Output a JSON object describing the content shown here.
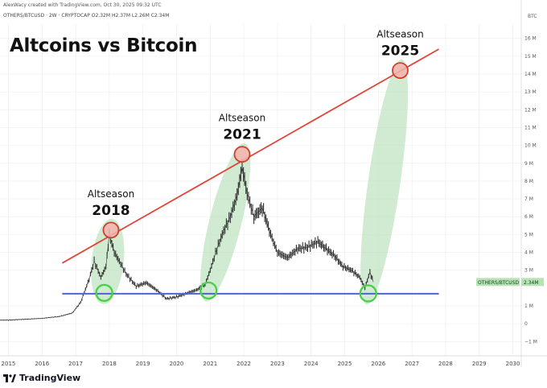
{
  "meta": {
    "creator_line": "AlexWacy created with TradingView.com, Oct 30, 2025 09:32 UTC",
    "symbol_line": "OTHERS/BTCUSD · 2W · CRYPTOCAP  O2.32M  H2.37M  L2.26M  C2.34M",
    "brand": "TradingView"
  },
  "colors": {
    "trendline": "#e0463a",
    "support": "#4f63d9",
    "cycle_fill": "#b7e1b9",
    "circle_red_fill": "#f4b3ae",
    "circle_red_stroke": "#c9412f",
    "circle_green_stroke": "#4cd04c",
    "candle": "#333333",
    "grid": "#ededed",
    "price_tag_bg": "#b6e3b4"
  },
  "chart_data": {
    "type": "line",
    "title": "Altcoins vs Bitcoin",
    "y_unit_label": "BTC",
    "ylim": [
      -1.8,
      16.8
    ],
    "xlim": [
      2014.75,
      2030.25
    ],
    "y_ticks": [
      {
        "v": 16,
        "label": "16 M"
      },
      {
        "v": 15,
        "label": "15 M"
      },
      {
        "v": 14,
        "label": "14 M"
      },
      {
        "v": 13,
        "label": "13 M"
      },
      {
        "v": 12,
        "label": "12 M"
      },
      {
        "v": 11,
        "label": "11 M"
      },
      {
        "v": 10,
        "label": "10 M"
      },
      {
        "v": 9,
        "label": "9 M"
      },
      {
        "v": 8,
        "label": "8 M"
      },
      {
        "v": 7,
        "label": "7 M"
      },
      {
        "v": 6,
        "label": "6 M"
      },
      {
        "v": 5,
        "label": "5 M"
      },
      {
        "v": 4,
        "label": "4 M"
      },
      {
        "v": 3,
        "label": "3 M"
      },
      {
        "v": 1,
        "label": "1 M"
      },
      {
        "v": 0,
        "label": "0"
      },
      {
        "v": -1,
        "label": "−1 M"
      }
    ],
    "x_ticks": [
      {
        "v": 2015,
        "label": "2015"
      },
      {
        "v": 2016,
        "label": "2016"
      },
      {
        "v": 2017,
        "label": "2017"
      },
      {
        "v": 2018,
        "label": "2018"
      },
      {
        "v": 2019,
        "label": "2019"
      },
      {
        "v": 2020,
        "label": "2020"
      },
      {
        "v": 2021,
        "label": "2021"
      },
      {
        "v": 2022,
        "label": "2022"
      },
      {
        "v": 2023,
        "label": "2023"
      },
      {
        "v": 2024,
        "label": "2024"
      },
      {
        "v": 2025,
        "label": "2025"
      },
      {
        "v": 2026,
        "label": "2026"
      },
      {
        "v": 2027,
        "label": "2027"
      },
      {
        "v": 2028,
        "label": "2028"
      },
      {
        "v": 2029,
        "label": "2029"
      },
      {
        "v": 2030,
        "label": "2030"
      }
    ],
    "price_tag": {
      "symbol": "OTHERS/BTCUSD",
      "value": 2.34,
      "label": "2.34M"
    },
    "series": [
      {
        "values": [
          [
            2014.75,
            0.2
          ],
          [
            2015.0,
            0.2
          ],
          [
            2015.5,
            0.25
          ],
          [
            2016.0,
            0.3
          ],
          [
            2016.5,
            0.4
          ],
          [
            2016.9,
            0.6
          ],
          [
            2017.15,
            1.2
          ],
          [
            2017.4,
            2.5
          ],
          [
            2017.55,
            3.5
          ],
          [
            2017.75,
            2.6
          ],
          [
            2017.9,
            3.2
          ],
          [
            2018.0,
            5.0
          ],
          [
            2018.15,
            4.0
          ],
          [
            2018.3,
            3.5
          ],
          [
            2018.5,
            2.8
          ],
          [
            2018.8,
            2.1
          ],
          [
            2019.1,
            2.3
          ],
          [
            2019.4,
            1.9
          ],
          [
            2019.7,
            1.4
          ],
          [
            2020.0,
            1.5
          ],
          [
            2020.3,
            1.7
          ],
          [
            2020.6,
            1.9
          ],
          [
            2020.85,
            2.2
          ],
          [
            2021.0,
            3.0
          ],
          [
            2021.2,
            4.2
          ],
          [
            2021.4,
            5.2
          ],
          [
            2021.6,
            6.0
          ],
          [
            2021.8,
            7.2
          ],
          [
            2021.95,
            8.8
          ],
          [
            2022.1,
            7.3
          ],
          [
            2022.3,
            6.0
          ],
          [
            2022.55,
            6.5
          ],
          [
            2022.8,
            5.0
          ],
          [
            2023.0,
            4.0
          ],
          [
            2023.3,
            3.7
          ],
          [
            2023.6,
            4.2
          ],
          [
            2023.9,
            4.3
          ],
          [
            2024.2,
            4.6
          ],
          [
            2024.45,
            4.2
          ],
          [
            2024.7,
            3.8
          ],
          [
            2024.95,
            3.2
          ],
          [
            2025.2,
            3.0
          ],
          [
            2025.45,
            2.6
          ],
          [
            2025.6,
            2.0
          ],
          [
            2025.75,
            2.9
          ],
          [
            2025.85,
            2.34
          ]
        ]
      }
    ],
    "trendline": {
      "from": [
        2016.6,
        3.4
      ],
      "to": [
        2027.8,
        15.4
      ]
    },
    "support_line": {
      "y": 1.68,
      "x_from": 2016.6,
      "x_to": 2027.8
    },
    "cycles": [
      {
        "label_top": "Altseason",
        "label_year": "2018",
        "peak": [
          2018.05,
          5.25
        ],
        "bottom": [
          2017.85,
          1.73
        ]
      },
      {
        "label_top": "Altseason",
        "label_year": "2021",
        "peak": [
          2021.95,
          9.5
        ],
        "bottom": [
          2020.95,
          1.86
        ]
      },
      {
        "label_top": "Altseason",
        "label_year": "2025",
        "peak": [
          2026.65,
          14.2
        ],
        "bottom": [
          2025.7,
          1.7
        ]
      }
    ]
  }
}
